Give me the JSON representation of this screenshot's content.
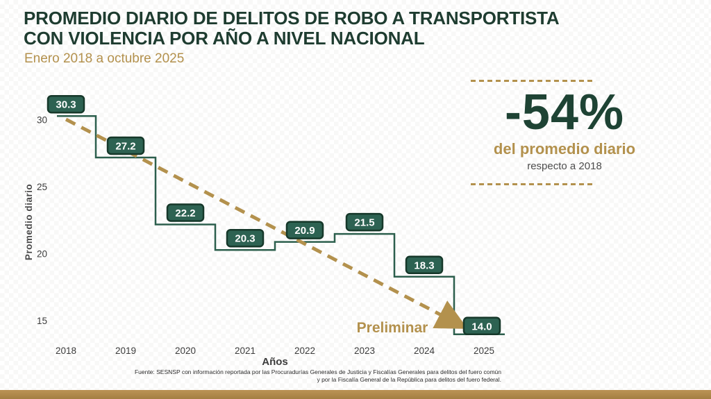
{
  "header": {
    "title_line1": "PROMEDIO DIARIO DE DELITOS DE ROBO A TRANSPORTISTA",
    "title_line2": "CON VIOLENCIA POR AÑO A NIVEL NACIONAL",
    "subtitle": "Enero 2018 a octubre 2025"
  },
  "stat": {
    "value": "-54%",
    "label": "del promedio diario",
    "sublabel": "respecto a 2018"
  },
  "chart_data": {
    "type": "line",
    "subtype": "step",
    "categories": [
      "2018",
      "2019",
      "2020",
      "2021",
      "2022",
      "2023",
      "2024",
      "2025"
    ],
    "values": [
      30.3,
      27.2,
      22.2,
      20.3,
      20.9,
      21.5,
      18.3,
      14.0
    ],
    "labels": [
      "30.3",
      "27.2",
      "22.2",
      "20.3",
      "20.9",
      "21.5",
      "18.3",
      "14.0"
    ],
    "ylabel": "Promedio diario",
    "xlabel": "Años",
    "yticks": [
      30,
      25,
      20,
      15
    ],
    "ylim": [
      13,
      31
    ],
    "grid": false,
    "legend": "none",
    "annotation": "Preliminar",
    "trend": {
      "type": "dashed-arrow",
      "from_category": "2018",
      "from_value": 30.3,
      "to_category": "2025",
      "to_value": 14.0
    }
  },
  "footer": {
    "source_line1": "Fuente: SESNSP con información reportada por las Procuradurías Generales de Justicia y Fiscalías Generales para delitos del fuero común",
    "source_line2": "y por la Fiscalía General de la República para delitos del fuero federal."
  },
  "colors": {
    "title_green": "#1e3c30",
    "stat_green": "#1e4334",
    "line_green": "#2c5f4d",
    "label_box_green": "#2d6252",
    "label_box_border": "#16382a",
    "label_text": "#ffffff",
    "gold": "#b3914d",
    "bottom_bar_gold": "#ab8446",
    "axis_text": "#3c3c3c"
  }
}
